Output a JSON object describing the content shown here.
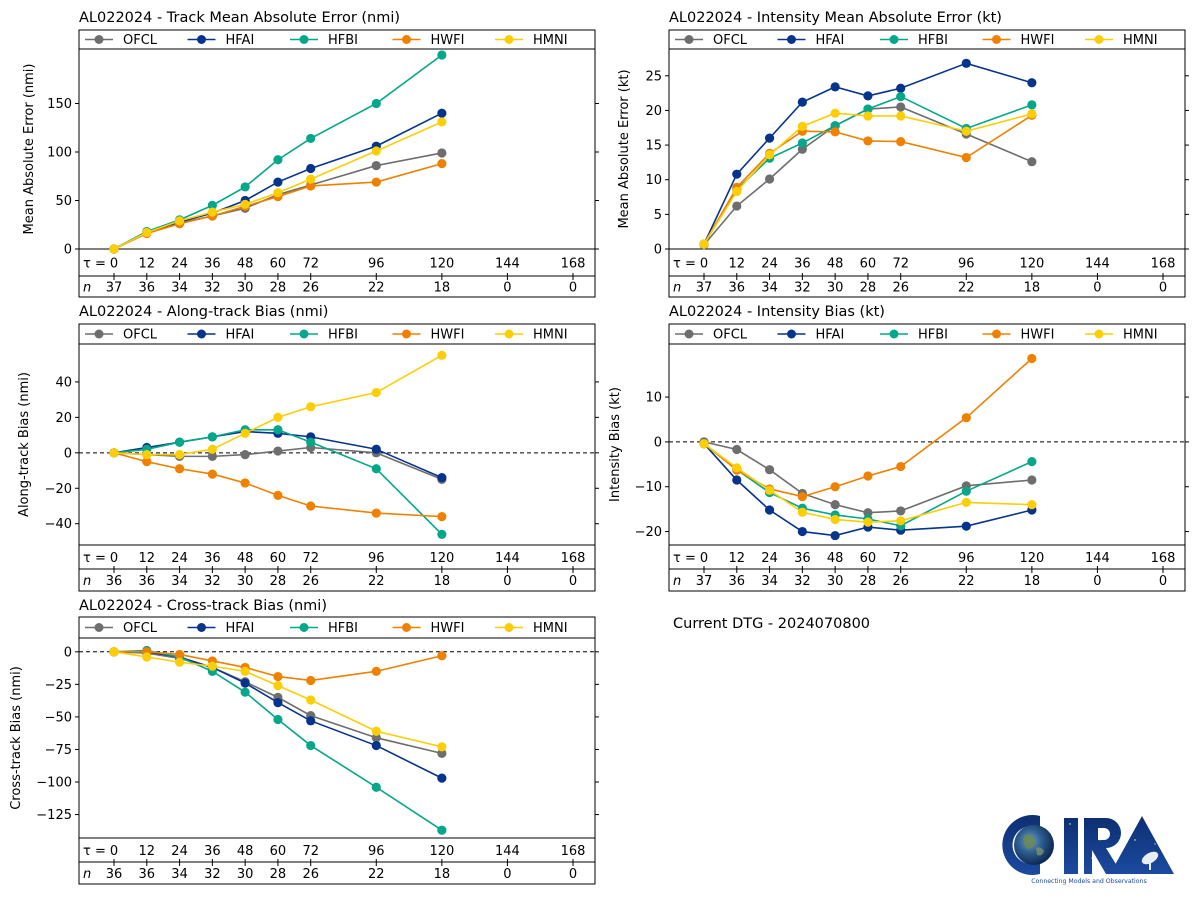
{
  "page": {
    "current_dtg": "Current DTG - 2024070800",
    "logo": {
      "name": "CIRA",
      "tagline": "Connecting Models and Observations"
    }
  },
  "series_styles": [
    {
      "name": "OFCL",
      "color": "#6e6e6e"
    },
    {
      "name": "HFAI",
      "color": "#06348c"
    },
    {
      "name": "HFBI",
      "color": "#04a78a"
    },
    {
      "name": "HWFI",
      "color": "#ef8000"
    },
    {
      "name": "HMNI",
      "color": "#fdcd06"
    }
  ],
  "chart_data": [
    {
      "id": "track-mae",
      "type": "line",
      "title": "AL022024 - Track Mean Absolute Error (nmi)",
      "xlabel": "",
      "ylabel": "Mean Absolute Error (nmi)",
      "ylim": [
        0,
        200
      ],
      "yticks": [
        0,
        50,
        100,
        150
      ],
      "zero_line": false,
      "legend": "top",
      "tau_label": "τ = ",
      "n_label": "n",
      "x_ticks": [
        0,
        12,
        24,
        36,
        48,
        60,
        72,
        96,
        120,
        144,
        168
      ],
      "n_counts": [
        37,
        36,
        34,
        32,
        30,
        28,
        26,
        22,
        18,
        0,
        0
      ],
      "x": [
        0,
        12,
        24,
        36,
        48,
        60,
        72,
        96,
        120
      ],
      "series": [
        {
          "name": "OFCL",
          "values": [
            0,
            17,
            27,
            34,
            42,
            56,
            66,
            86,
            99
          ]
        },
        {
          "name": "HFAI",
          "values": [
            0,
            17,
            28,
            37,
            50,
            69,
            83,
            106,
            140
          ]
        },
        {
          "name": "HFBI",
          "values": [
            0,
            18,
            30,
            45,
            64,
            92,
            114,
            150,
            200
          ]
        },
        {
          "name": "HWFI",
          "values": [
            0,
            16,
            26,
            34,
            44,
            54,
            65,
            69,
            88
          ]
        },
        {
          "name": "HMNI",
          "values": [
            0,
            17,
            29,
            38,
            46,
            58,
            72,
            101,
            131
          ]
        }
      ]
    },
    {
      "id": "intensity-mae",
      "type": "line",
      "title": "AL022024 - Intensity Mean Absolute Error (kt)",
      "xlabel": "",
      "ylabel": "Mean Absolute Error (kt)",
      "ylim": [
        0,
        28
      ],
      "yticks": [
        0,
        5,
        10,
        15,
        20,
        25
      ],
      "zero_line": false,
      "legend": "top",
      "tau_label": "τ = ",
      "n_label": "n",
      "x_ticks": [
        0,
        12,
        24,
        36,
        48,
        60,
        72,
        96,
        120,
        144,
        168
      ],
      "n_counts": [
        37,
        36,
        34,
        32,
        30,
        28,
        26,
        22,
        18,
        0,
        0
      ],
      "x": [
        0,
        12,
        24,
        36,
        48,
        60,
        72,
        96,
        120
      ],
      "series": [
        {
          "name": "OFCL",
          "values": [
            0.6,
            6.2,
            10.1,
            14.4,
            17.8,
            20.2,
            20.5,
            16.6,
            12.6
          ]
        },
        {
          "name": "HFAI",
          "values": [
            0.7,
            10.8,
            16.0,
            21.2,
            23.4,
            22.1,
            23.2,
            26.8,
            24.0
          ]
        },
        {
          "name": "HFBI",
          "values": [
            0.7,
            8.6,
            13.1,
            15.3,
            17.8,
            20.2,
            22.0,
            17.4,
            20.8
          ]
        },
        {
          "name": "HWFI",
          "values": [
            0.7,
            8.9,
            13.8,
            17.0,
            16.9,
            15.6,
            15.5,
            13.2,
            19.3
          ]
        },
        {
          "name": "HMNI",
          "values": [
            0.7,
            8.3,
            13.6,
            17.7,
            19.6,
            19.2,
            19.2,
            17.0,
            19.5
          ]
        }
      ]
    },
    {
      "id": "along-track-bias",
      "type": "line",
      "title": "AL022024 - Along-track Bias (nmi)",
      "xlabel": "",
      "ylabel": "Along-track Bias (nmi)",
      "ylim": [
        -52,
        58
      ],
      "yticks": [
        -40,
        -20,
        0,
        20,
        40
      ],
      "zero_line": true,
      "legend": "top",
      "tau_label": "τ = ",
      "n_label": "n",
      "x_ticks": [
        0,
        12,
        24,
        36,
        48,
        60,
        72,
        96,
        120,
        144,
        168
      ],
      "n_counts": [
        36,
        36,
        34,
        32,
        30,
        28,
        26,
        22,
        18,
        0,
        0
      ],
      "x": [
        0,
        12,
        24,
        36,
        48,
        60,
        72,
        96,
        120
      ],
      "series": [
        {
          "name": "OFCL",
          "values": [
            0,
            -1,
            -2,
            -2,
            -1,
            1,
            3,
            0,
            -15
          ]
        },
        {
          "name": "HFAI",
          "values": [
            0,
            3,
            6,
            9,
            12,
            11,
            9,
            2,
            -14
          ]
        },
        {
          "name": "HFBI",
          "values": [
            0,
            2,
            6,
            9,
            13,
            13,
            6,
            -9,
            -46
          ]
        },
        {
          "name": "HWFI",
          "values": [
            0,
            -5,
            -9,
            -12,
            -17,
            -24,
            -30,
            -34,
            -36
          ]
        },
        {
          "name": "HMNI",
          "values": [
            0,
            -1,
            -1,
            2,
            11,
            20,
            26,
            34,
            55
          ]
        }
      ]
    },
    {
      "id": "intensity-bias",
      "type": "line",
      "title": "AL022024 - Intensity Bias (kt)",
      "xlabel": "",
      "ylabel": "Intensity Bias (kt)",
      "ylim": [
        -23,
        20.5
      ],
      "yticks": [
        -20,
        -10,
        0,
        10
      ],
      "zero_line": true,
      "legend": "top",
      "tau_label": "τ = ",
      "n_label": "n",
      "x_ticks": [
        0,
        12,
        24,
        36,
        48,
        60,
        72,
        96,
        120,
        144,
        168
      ],
      "n_counts": [
        37,
        36,
        34,
        32,
        30,
        28,
        26,
        22,
        18,
        0,
        0
      ],
      "x": [
        0,
        12,
        24,
        36,
        48,
        60,
        72,
        96,
        120
      ],
      "series": [
        {
          "name": "OFCL",
          "values": [
            0,
            -1.7,
            -6.2,
            -11.5,
            -14.0,
            -15.8,
            -15.4,
            -9.8,
            -8.5
          ]
        },
        {
          "name": "HFAI",
          "values": [
            -0.4,
            -8.5,
            -15.2,
            -20.0,
            -20.9,
            -19.0,
            -19.7,
            -18.8,
            -15.2
          ]
        },
        {
          "name": "HFBI",
          "values": [
            -0.4,
            -6.2,
            -11.3,
            -14.8,
            -16.3,
            -17.2,
            -18.7,
            -11.0,
            -4.4
          ]
        },
        {
          "name": "HWFI",
          "values": [
            -0.4,
            -6.3,
            -10.5,
            -12.2,
            -10.0,
            -7.6,
            -5.5,
            5.4,
            18.6
          ]
        },
        {
          "name": "HMNI",
          "values": [
            -0.4,
            -5.8,
            -10.8,
            -15.7,
            -17.3,
            -17.9,
            -17.6,
            -13.5,
            -14.0
          ]
        }
      ]
    },
    {
      "id": "cross-track-bias",
      "type": "line",
      "title": "AL022024 - Cross-track Bias (nmi)",
      "xlabel": "",
      "ylabel": "Cross-track Bias (nmi)",
      "ylim": [
        -143,
        6
      ],
      "yticks": [
        -125,
        -100,
        -75,
        -50,
        -25,
        0
      ],
      "zero_line": true,
      "legend": "top",
      "tau_label": "τ = ",
      "n_label": "n",
      "x_ticks": [
        0,
        12,
        24,
        36,
        48,
        60,
        72,
        96,
        120,
        144,
        168
      ],
      "n_counts": [
        36,
        36,
        34,
        32,
        30,
        28,
        26,
        22,
        18,
        0,
        0
      ],
      "x": [
        0,
        12,
        24,
        36,
        48,
        60,
        72,
        96,
        120
      ],
      "series": [
        {
          "name": "OFCL",
          "values": [
            0,
            -1,
            -5,
            -12,
            -23,
            -35,
            -49,
            -66,
            -78
          ]
        },
        {
          "name": "HFAI",
          "values": [
            0,
            0,
            -4,
            -12,
            -24,
            -39,
            -53,
            -72,
            -97
          ]
        },
        {
          "name": "HFBI",
          "values": [
            0,
            1,
            -4,
            -15,
            -31,
            -52,
            -72,
            -104,
            -137
          ]
        },
        {
          "name": "HWFI",
          "values": [
            0,
            0,
            -2,
            -7,
            -12,
            -19,
            -22,
            -15,
            -3
          ]
        },
        {
          "name": "HMNI",
          "values": [
            0,
            -4,
            -8,
            -11,
            -15,
            -26,
            -37,
            -61,
            -73
          ]
        }
      ]
    }
  ]
}
